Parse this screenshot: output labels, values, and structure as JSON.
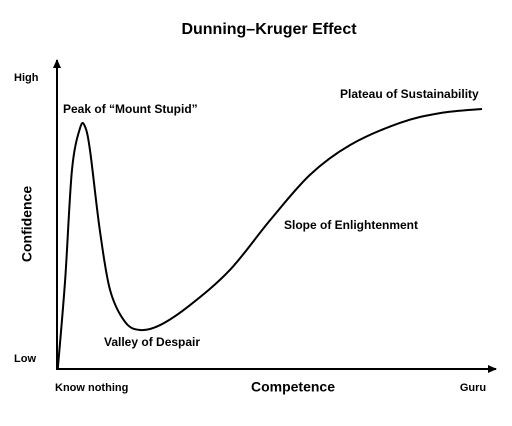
{
  "chart_data": {
    "type": "line",
    "title": "Dunning–Kruger Effect",
    "xlabel": "Competence",
    "ylabel": "Confidence",
    "xlim": [
      0,
      100
    ],
    "ylim": [
      0,
      100
    ],
    "xticks": [
      {
        "value": 0,
        "label": "Know nothing"
      },
      {
        "value": 100,
        "label": "Guru"
      }
    ],
    "yticks": [
      {
        "value": 0,
        "label": "Low"
      },
      {
        "value": 100,
        "label": "High"
      }
    ],
    "annotations": [
      "Peak of “Mount Stupid”",
      "Valley of Despair",
      "Slope of Enlightenment",
      "Plateau of Sustainability"
    ],
    "x": [
      0.2,
      1.9,
      3.5,
      5.4,
      6.5,
      7.7,
      10,
      12.4,
      15.9,
      19.4,
      24.1,
      31.1,
      40.4,
      49.8,
      59.1,
      68.5,
      80.1,
      89.5,
      99.3
    ],
    "series": [
      {
        "color": "#000000",
        "values": [
          0,
          30.3,
          68.3,
          82.8,
          83.4,
          75.2,
          47.6,
          26.9,
          15.9,
          13.1,
          14.8,
          21.7,
          33.8,
          51,
          66.6,
          76.9,
          84.5,
          87.9,
          89.3
        ]
      }
    ]
  }
}
